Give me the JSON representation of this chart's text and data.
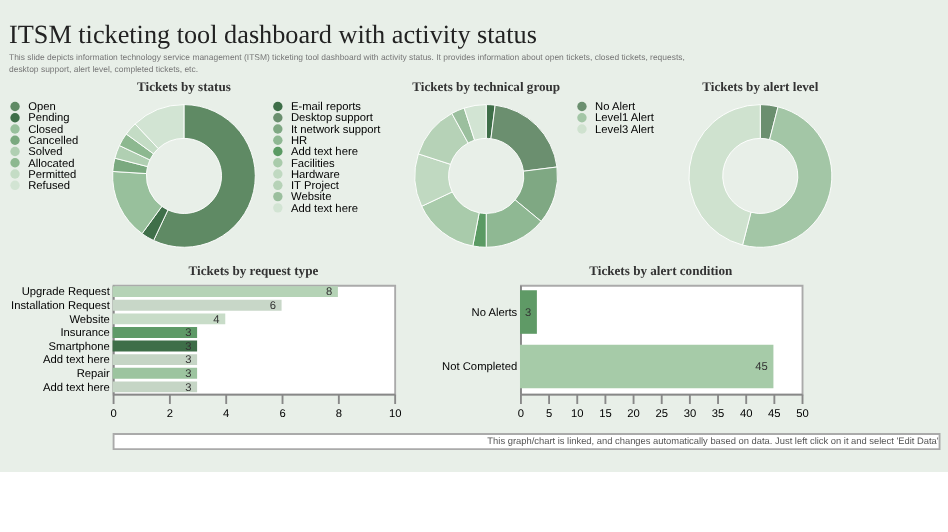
{
  "chart_data": [
    {
      "type": "other",
      "title": "ITSM ticketing tool dashboard with activity status",
      "subtitle": "This slide depicts information technology service management (ITSM) ticketing tool dashboard with activity status. It provides information about open tickets, closed tickets, requests, desktop support, alert level, completed tickets, etc.",
      "annotations": [
        "This graph/chart is linked, and changes automatically based on data. Just left click on it and select 'Edit Data'"
      ]
    },
    {
      "type": "donut",
      "title": "Tickets by status",
      "categories": [
        "Open",
        "Pending",
        "Closed",
        "Cancelled",
        "Solved",
        "Allocated",
        "Permitted",
        "Refused"
      ],
      "values": [
        57,
        3,
        16,
        3,
        3,
        3,
        3,
        12
      ],
      "colors": [
        "#5f8a64",
        "#3f6f49",
        "#98c09c",
        "#7aa97f",
        "#b0cfb2",
        "#8db890",
        "#c4dcc5",
        "#d2e4d3"
      ],
      "legend": "left"
    },
    {
      "type": "donut",
      "title": "Tickets by technical group",
      "categories": [
        "E-mail reports",
        "Desktop support",
        "It network support",
        "HR",
        "Add text here",
        "Facilities",
        "Hardware",
        "IT Project",
        "Website",
        "Add text here"
      ],
      "values": [
        2,
        21,
        13,
        14,
        3,
        15,
        12,
        12,
        3,
        5
      ],
      "colors": [
        "#3e6e48",
        "#6b8f6f",
        "#7fa883",
        "#8fb893",
        "#5a9a63",
        "#a9cbab",
        "#c0d9c1",
        "#b6d2b7",
        "#9bbf9e",
        "#d2e4d3"
      ],
      "legend": "left"
    },
    {
      "type": "donut",
      "title": "Tickets by alert level",
      "categories": [
        "No Alert",
        "Level1 Alert",
        "Level3 Alert"
      ],
      "values": [
        4,
        50,
        46
      ],
      "colors": [
        "#6b8f6f",
        "#a3c6a6",
        "#cfe2cf"
      ],
      "legend": "left"
    },
    {
      "type": "bar",
      "orientation": "horizontal",
      "title": "Tickets by request type",
      "categories": [
        "Upgrade Request",
        "Installation Request",
        "Website",
        "Insurance",
        "Smartphone",
        "Add text here",
        "Repair",
        "Add text here"
      ],
      "values": [
        8,
        6,
        4,
        3,
        3,
        3,
        3,
        3
      ],
      "colors": [
        "#b5d3b6",
        "#c8d7c8",
        "#c8dcc8",
        "#5e9a67",
        "#3e6e48",
        "#c5d5c5",
        "#9cc49f",
        "#c5d5c5"
      ],
      "xlim": [
        0,
        10
      ],
      "xticks": [
        0,
        2,
        4,
        6,
        8,
        10
      ],
      "data_labels": true
    },
    {
      "type": "bar",
      "orientation": "horizontal",
      "title": "Tickets by alert condition",
      "categories": [
        "No Alerts",
        "Not Completed"
      ],
      "values": [
        3,
        45
      ],
      "colors": [
        "#5f9a66",
        "#a6cba8"
      ],
      "xlim": [
        0,
        50
      ],
      "xticks": [
        0,
        5,
        10,
        15,
        20,
        25,
        30,
        35,
        40,
        45,
        50
      ],
      "data_labels": true
    }
  ]
}
